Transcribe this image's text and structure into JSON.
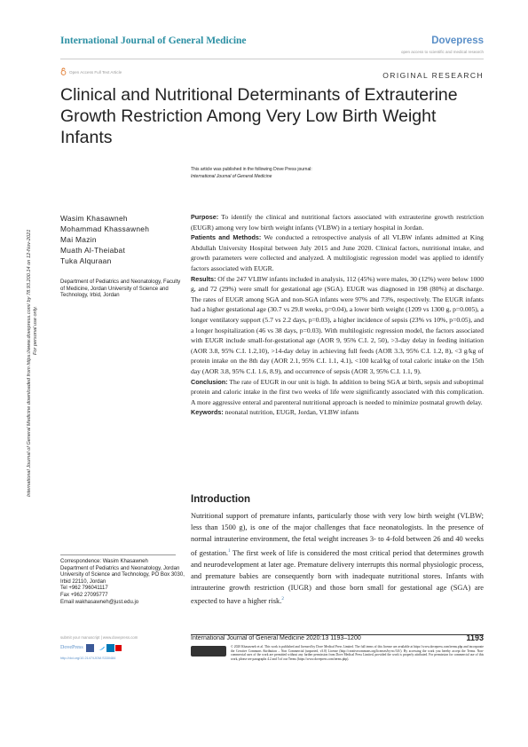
{
  "header": {
    "journal": "International Journal of General Medicine",
    "publisher": "Dovepress",
    "publisher_tagline": "open access to scientific and medical research",
    "access": "Open Access Full Text Article",
    "article_type": "ORIGINAL RESEARCH"
  },
  "title": "Clinical and Nutritional Determinants of Extrauterine Growth Restriction Among Very Low Birth Weight Infants",
  "publication_note": {
    "line": "This article was published in the following Dove Press journal:",
    "journal": "International Journal of General Medicine"
  },
  "side_note": {
    "line_1": "International Journal of General Medicine downloaded from https://www.dovepress.com/ by 78.93.200.14 on 12-Nov-2021",
    "line_2": "For personal use only."
  },
  "authors": [
    "Wasim Khasawneh",
    "Mohammad Khassawneh",
    "Mai Mazin",
    "Muath Al-Theiabat",
    "Tuka Alquraan"
  ],
  "affiliation": "Department of Pediatrics and Neonatology, Faculty of Medicine, Jordan University of Science and Technology, Irbid, Jordan",
  "abstract": [
    {
      "label": "Purpose:",
      "text": "To identify the clinical and nutritional factors associated with extrauterine growth restriction (EUGR) among very low birth weight infants (VLBW) in a tertiary hospital in Jordan."
    },
    {
      "label": "Patients and Methods:",
      "text": "We conducted a retrospective analysis of all VLBW infants admitted at King Abdullah University Hospital between July 2015 and June 2020. Clinical factors, nutritional intake, and growth parameters were collected and analyzed. A multilogistic regression model was applied to identify factors associated with EUGR."
    },
    {
      "label": "Results:",
      "text": "Of the 247 VLBW infants included in analysis, 112 (45%) were males, 30 (12%) were below 1000 g, and 72 (29%) were small for gestational age (SGA). EUGR was diagnosed in 198 (80%) at discharge. The rates of EUGR among SGA and non-SGA infants were 97% and 73%, respectively. The EUGR infants had a higher gestational age (30.7 vs 29.8 weeks, p=0.04), a lower birth weight (1209 vs 1300 g, p=0.005), a longer ventilatory support (5.7 vs 2.2 days, p=0.03), a higher incidence of sepsis (23% vs 10%, p=0.05), and a longer hospitalization (46 vs 38 days, p=0.03). With multilogistic regression model, the factors associated with EUGR include small-for-gestational age (AOR 9, 95% C.I. 2, 50), >3-day delay in feeding initiation (AOR 3.8, 95% C.I. 1.2,10), >14-day delay in achieving full feeds (AOR 3.3, 95% C.I. 1.2, 8), <3 g/kg of protein intake on the 8th day (AOR 2.1, 95% C.I. 1.1, 4.1), <100 kcal/kg of total caloric intake on the 15th day (AOR 3.8, 95% C.I. 1.6, 8.9), and occurrence of sepsis (AOR 3, 95% C.I. 1.1, 9)."
    },
    {
      "label": "Conclusion:",
      "text": "The rate of EUGR in our unit is high. In addition to being SGA at birth, sepsis and suboptimal protein and caloric intake in the first two weeks of life were significantly associated with this complication. A more aggressive enteral and parenteral nutritional approach is needed to minimize postnatal growth delay."
    },
    {
      "label": "Keywords:",
      "text": "neonatal nutrition, EUGR, Jordan, VLBW infants"
    }
  ],
  "introduction": {
    "heading": "Introduction",
    "text_1": "Nutritional support of premature infants, particularly those with very low birth weight (VLBW; less than 1500 g), is one of the major challenges that face neonatologists. In the presence of normal intrauterine environment, the fetal weight increases 3- to 4-fold between 26 and 40 weeks of gestation.",
    "ref_1": "1",
    "text_2": " The first week of life is considered the most critical period that determines growth and neurodevelopment at later age. Premature delivery interrupts this normal physiologic process, and premature babies are consequently born with inadequate nutritional stores. Infants with intrauterine growth restriction (IUGR) and those born small for gestational age (SGA) are expected to have a higher risk.",
    "ref_2": "2"
  },
  "correspondence": [
    "Correspondence: Wasim Khasawneh",
    "Department of Pediatrics and Neonatology, Jordan University of Science and Technology, PO Box 3030, Irbid 22110, Jordan",
    "Tel +962 796041117",
    "Fax +962 27095777",
    "Email wakhasawneh@just.edu.jo"
  ],
  "footer": {
    "submit": "submit your manuscript | www.dovepress.com",
    "publisher": "DovePress",
    "doi": "http://doi.org/10.2147/IJGM.S330484",
    "citation": "International Journal of General Medicine 2020:13 1193–1200",
    "page": "1193",
    "license": "© 2020 Khasawneh et al. This work is published and licensed by Dove Medical Press Limited. The full terms of this license are available at https://www.dovepress.com/terms.php and incorporate the Creative Commons Attribution – Non Commercial (unported, v3.0) License (http://creativecommons.org/licenses/by-nc/3.0/). By accessing the work you hereby accept the Terms. Non-commercial uses of the work are permitted without any further permission from Dove Medical Press Limited, provided the work is properly attributed. For permission for commercial use of this work, please see paragraphs 4.2 and 5 of our Terms (https://www.dovepress.com/terms.php)."
  }
}
